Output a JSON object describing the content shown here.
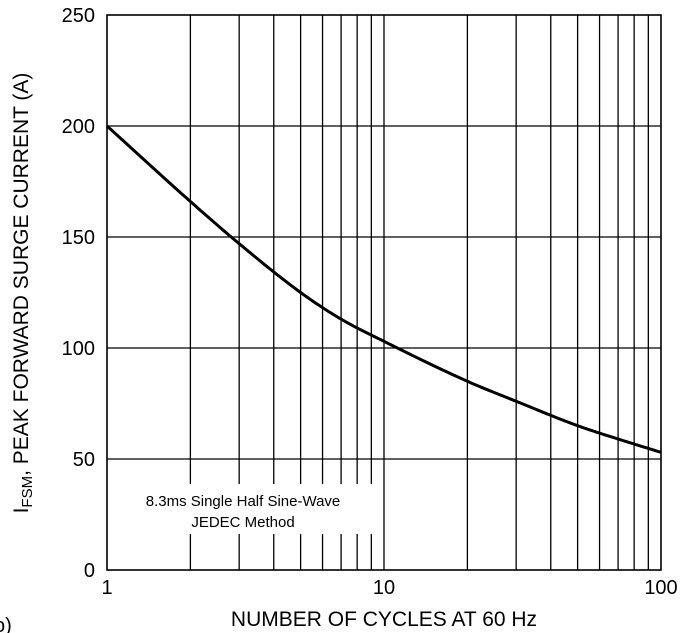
{
  "chart_data": {
    "type": "line",
    "title": "",
    "xlabel": "NUMBER OF CYCLES AT 60 Hz",
    "ylabel": {
      "prefix": "I",
      "subscript": "FSM",
      "text": ",  PEAK FORWARD SURGE CURRENT (A)"
    },
    "x_scale": "log",
    "xlim": [
      1,
      100
    ],
    "ylim": [
      0,
      250
    ],
    "x_ticks": [
      {
        "value": 1,
        "label": "1"
      },
      {
        "value": 10,
        "label": "10"
      },
      {
        "value": 100,
        "label": "100"
      }
    ],
    "y_ticks": [
      {
        "value": 0,
        "label": "0"
      },
      {
        "value": 50,
        "label": "50"
      },
      {
        "value": 100,
        "label": "100"
      },
      {
        "value": 150,
        "label": "150"
      },
      {
        "value": 200,
        "label": "200"
      },
      {
        "value": 250,
        "label": "250"
      }
    ],
    "grid": true,
    "annotation": [
      "8.3ms Single Half Sine-Wave",
      "JEDEC Method"
    ],
    "series": [
      {
        "x": [
          1,
          2,
          3,
          5,
          7,
          10,
          20,
          30,
          50,
          70,
          100
        ],
        "values": [
          200,
          166,
          147,
          125,
          113,
          103,
          85,
          76,
          65,
          59,
          53
        ]
      }
    ]
  },
  "edge_fragment": "o)"
}
